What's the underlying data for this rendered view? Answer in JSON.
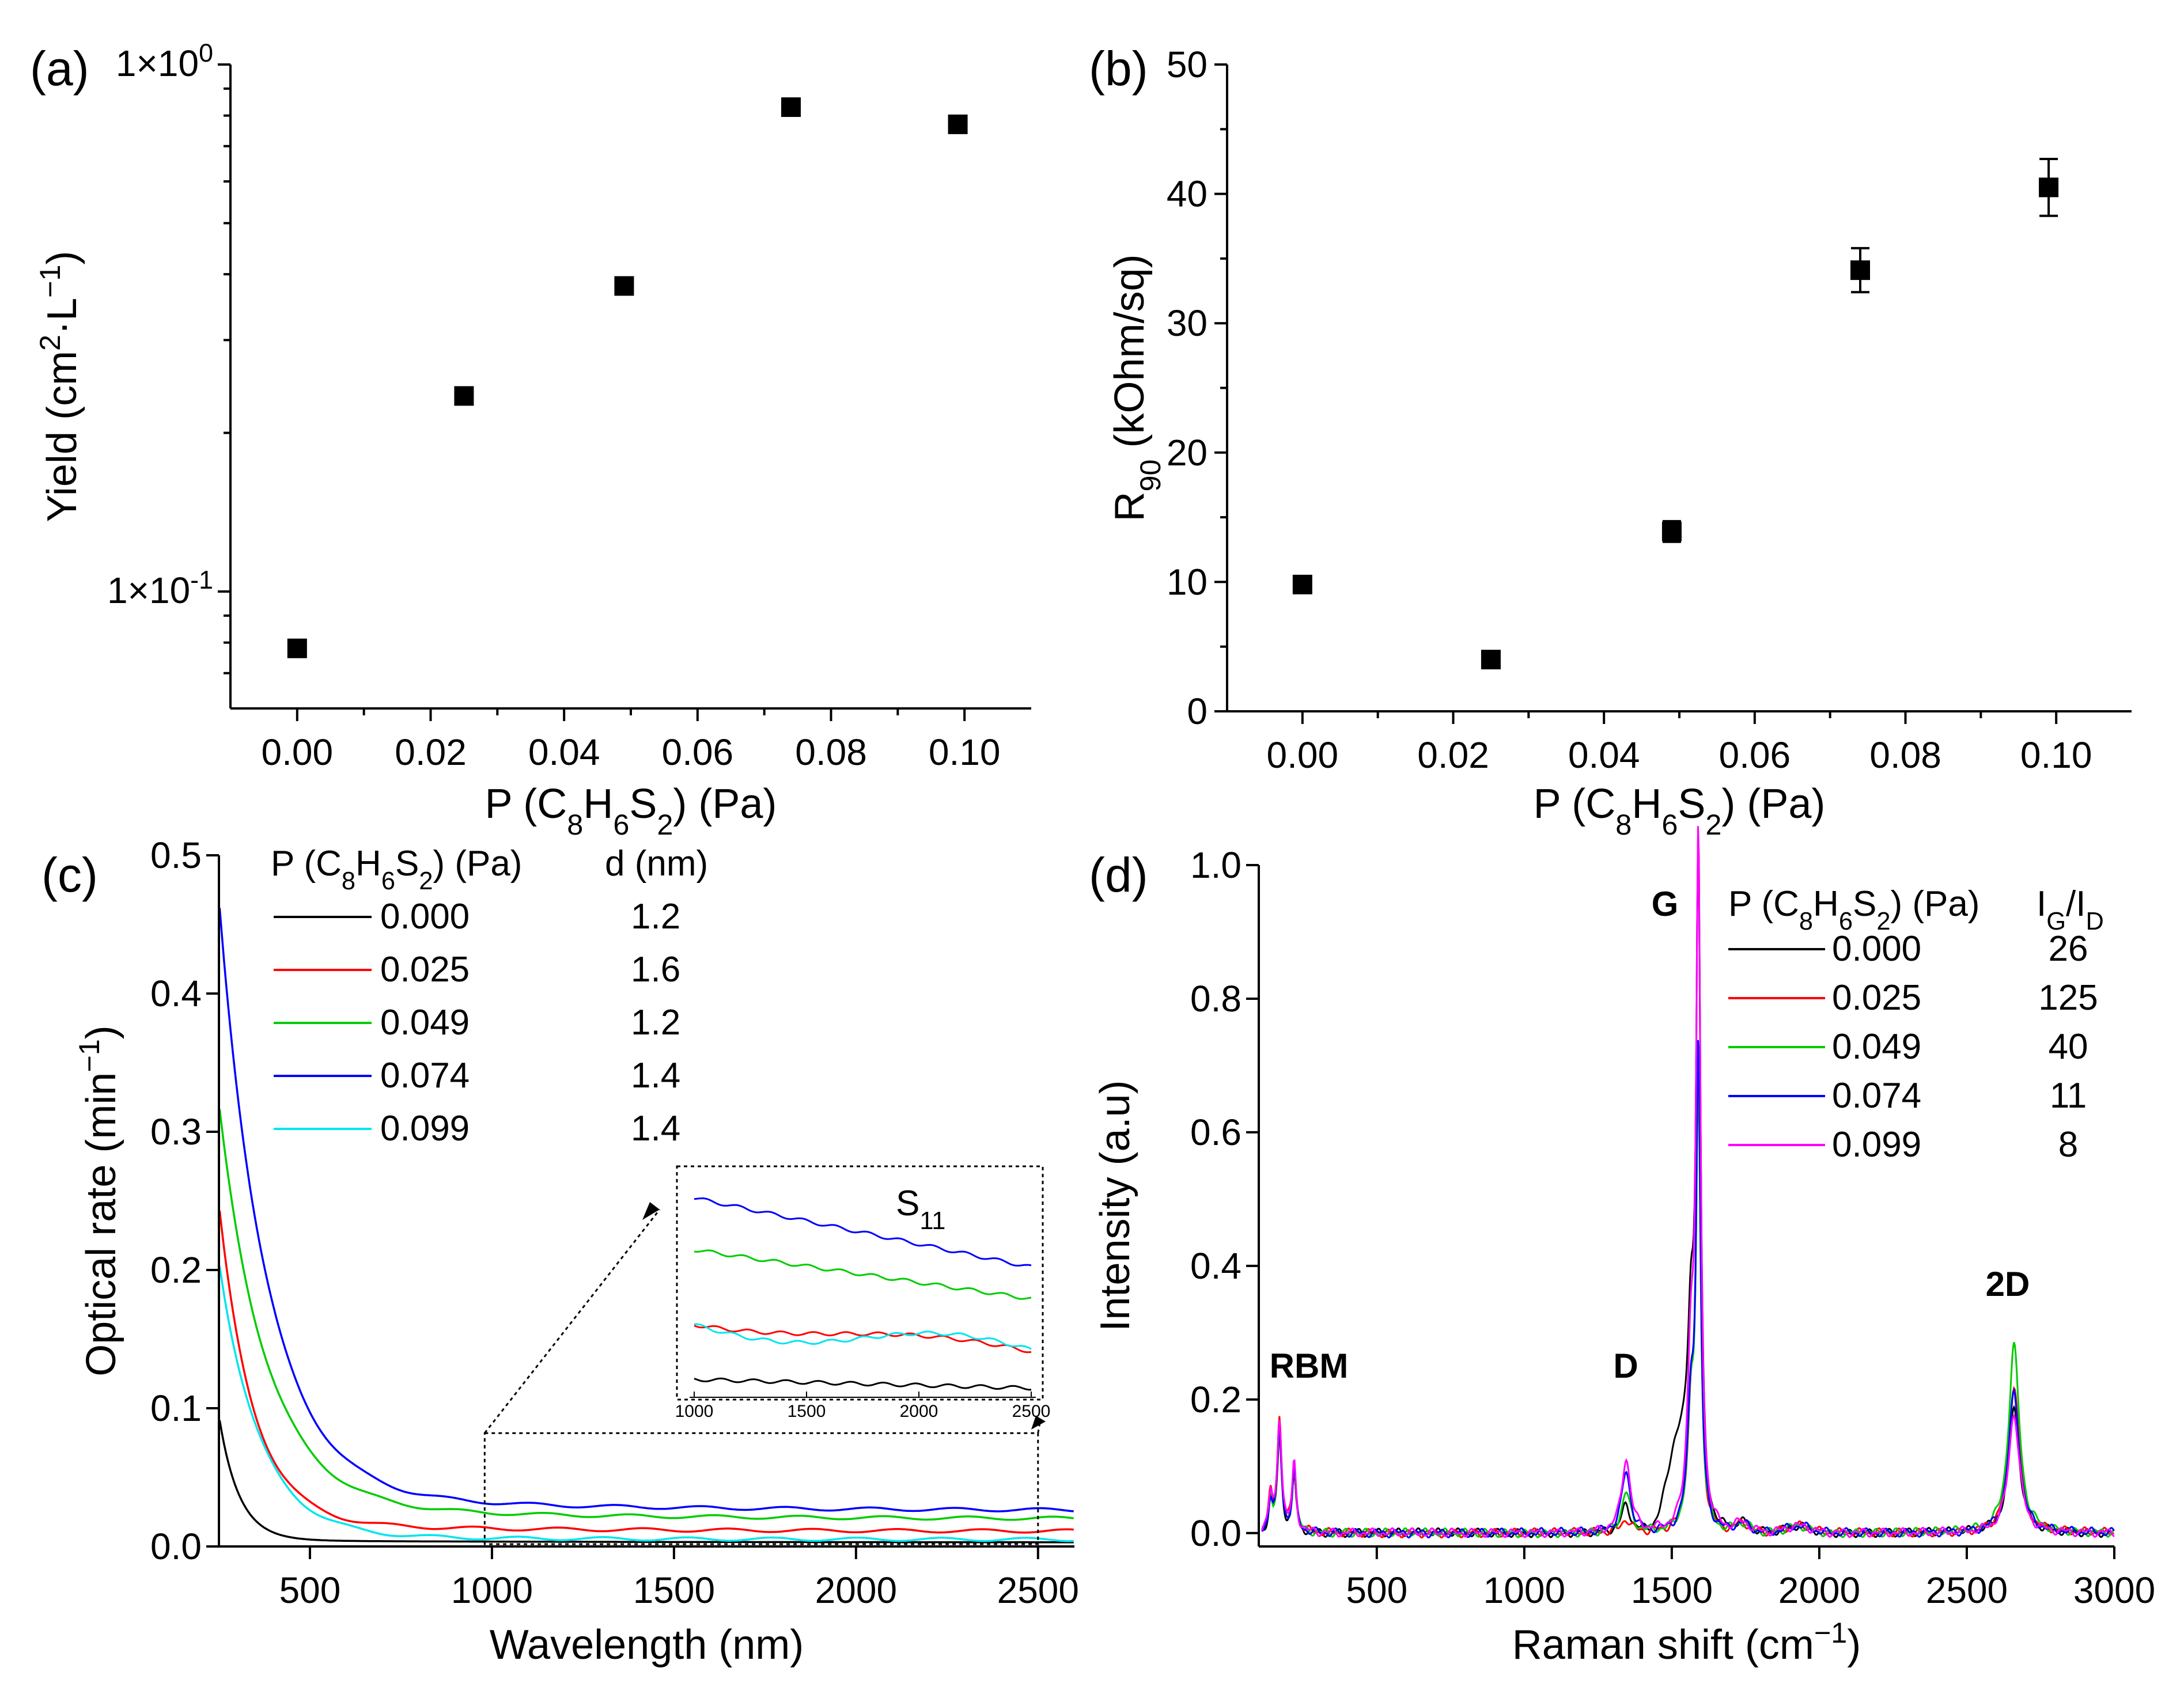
{
  "chart_data": [
    {
      "panel": "(a)",
      "type": "scatter",
      "yscale": "log",
      "xlabel": {
        "base": "P (C",
        "s1": "8",
        "m1": "H",
        "s2": "6",
        "m2": "S",
        "s3": "2",
        "end": ") (Pa)"
      },
      "ylabel": {
        "base": "Yield (cm",
        "sup1": "2",
        "mid": "·L",
        "sup2": "−1",
        "end": ")"
      },
      "xlim": [
        -0.01,
        0.11
      ],
      "ylim": [
        0.06,
        1.0
      ],
      "xticks": [
        "0.00",
        "0.02",
        "0.04",
        "0.06",
        "0.08",
        "0.10"
      ],
      "yticks": [
        {
          "value": 1.0,
          "base": "1×10",
          "exp": "0"
        },
        {
          "value": 0.1,
          "base": "1×10",
          "exp": "-1"
        }
      ],
      "series": [
        {
          "name": "Yield",
          "x": [
            0.0,
            0.025,
            0.049,
            0.074,
            0.099
          ],
          "y": [
            0.078,
            0.235,
            0.38,
            0.83,
            0.77
          ]
        }
      ]
    },
    {
      "panel": "(b)",
      "type": "scatter",
      "xlabel": {
        "base": "P (C",
        "s1": "8",
        "m1": "H",
        "s2": "6",
        "m2": "S",
        "s3": "2",
        "end": ") (Pa)"
      },
      "ylabel": {
        "base": "R",
        "sub": "90",
        "end": " (kOhm/sq)"
      },
      "xlim": [
        -0.01,
        0.11
      ],
      "ylim": [
        0,
        50
      ],
      "xticks": [
        "0.00",
        "0.02",
        "0.04",
        "0.06",
        "0.08",
        "0.10"
      ],
      "yticks": [
        "0",
        "10",
        "20",
        "30",
        "40",
        "50"
      ],
      "series": [
        {
          "name": "R90",
          "x": [
            0.0,
            0.025,
            0.049,
            0.074,
            0.099
          ],
          "y": [
            9.8,
            4.0,
            13.9,
            34.1,
            40.5
          ],
          "err": [
            0.3,
            0.3,
            0.8,
            1.7,
            2.2
          ]
        }
      ]
    },
    {
      "panel": "(c)",
      "type": "line",
      "xlabel": "Wavelength (nm)",
      "ylabel": {
        "base": "Optical rate (min",
        "sup": "−1",
        "end": ")"
      },
      "xlim": [
        250,
        2600
      ],
      "ylim": [
        0,
        0.5
      ],
      "xticks": [
        "500",
        "1000",
        "1500",
        "2000",
        "2500"
      ],
      "yticks": [
        "0.0",
        "0.1",
        "0.2",
        "0.3",
        "0.4",
        "0.5"
      ],
      "legend": {
        "title": {
          "base": "P (C",
          "s1": "8",
          "m1": "H",
          "s2": "6",
          "m2": "S",
          "s3": "2",
          "end": ") (Pa)"
        },
        "extra_title": "d (nm)",
        "position": "top-right"
      },
      "series": [
        {
          "name": "0.000",
          "d": "1.2",
          "color": "#000000",
          "asym": 0.003,
          "amp": 0.09,
          "k": 55
        },
        {
          "name": "0.025",
          "d": "1.6",
          "color": "#ff0000",
          "asym": 0.011,
          "amp": 0.23,
          "k": 95
        },
        {
          "name": "0.049",
          "d": "1.2",
          "color": "#00cc00",
          "asym": 0.02,
          "amp": 0.29,
          "k": 130
        },
        {
          "name": "0.074",
          "d": "1.4",
          "color": "#0000ff",
          "asym": 0.026,
          "amp": 0.43,
          "k": 130
        },
        {
          "name": "0.099",
          "d": "1.4",
          "color": "#00e5ee",
          "asym": 0.005,
          "amp": 0.2,
          "k": 110
        }
      ],
      "inset": {
        "label": "S",
        "label_sub": "11",
        "xlim": [
          1000,
          2500
        ],
        "xticks": [
          "1000",
          "1500",
          "2000",
          "2500"
        ],
        "box_data": {
          "x": [
            980,
            2500
          ],
          "y": [
            0.0,
            0.082
          ]
        }
      }
    },
    {
      "panel": "(d)",
      "type": "line",
      "xlabel": {
        "base": "Raman shift (cm",
        "sup": "−1",
        "end": ")"
      },
      "ylabel": "Intensity (a.u)",
      "xlim": [
        100,
        3000
      ],
      "ylim": [
        -0.02,
        1.0
      ],
      "xticks": [
        "500",
        "1000",
        "1500",
        "2000",
        "2500",
        "3000"
      ],
      "yticks": [
        "0.0",
        "0.2",
        "0.4",
        "0.6",
        "0.8",
        "1.0"
      ],
      "annotations": [
        "RBM",
        "D",
        "G",
        "2D"
      ],
      "legend": {
        "title": {
          "base": "P (C",
          "s1": "8",
          "m1": "H",
          "s2": "6",
          "m2": "S",
          "s3": "2",
          "end": ") (Pa)"
        },
        "extra_title": {
          "base": "I",
          "sub1": "G",
          "mid": "/I",
          "sub2": "D"
        },
        "position": "top-right"
      },
      "series": [
        {
          "name": "0.000",
          "ratio": "26",
          "color": "#000000",
          "rbm": 0.14,
          "d": 0.04,
          "g": 0.98,
          "d2": 0.19
        },
        {
          "name": "0.025",
          "ratio": "125",
          "color": "#ff0000",
          "rbm": 0.17,
          "d": 0.02,
          "g": 0.66,
          "d2": 0.22
        },
        {
          "name": "0.049",
          "ratio": "40",
          "color": "#00cc00",
          "rbm": 0.16,
          "d": 0.06,
          "g": 0.65,
          "d2": 0.28
        },
        {
          "name": "0.074",
          "ratio": "11",
          "color": "#0000ff",
          "rbm": 0.15,
          "d": 0.09,
          "g": 0.7,
          "d2": 0.21
        },
        {
          "name": "0.099",
          "ratio": "8",
          "color": "#ff00ff",
          "rbm": 0.17,
          "d": 0.11,
          "g": 1.0,
          "d2": 0.18
        }
      ]
    }
  ]
}
